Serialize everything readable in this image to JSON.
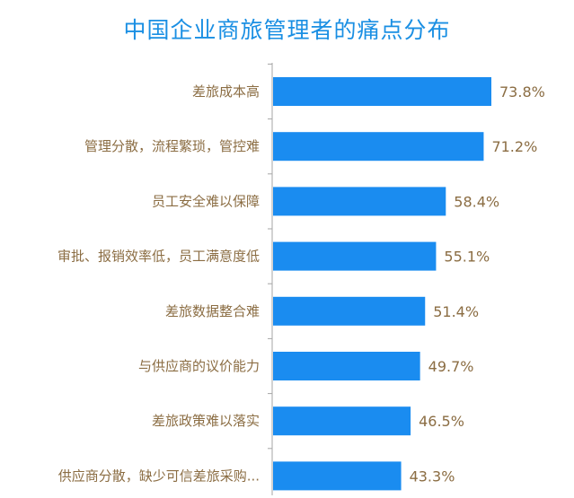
{
  "chart_data": {
    "type": "bar",
    "orientation": "horizontal",
    "title": "中国企业商旅管理者的痛点分布",
    "categories": [
      "差旅成本高",
      "管理分散，流程繁琐，管控难",
      "员工安全难以保障",
      "审批、报销效率低，员工满意度低",
      "差旅数据整合难",
      "与供应商的议价能力",
      "差旅政策难以落实",
      "供应商分散，缺少可信差旅采购..."
    ],
    "values": [
      73.8,
      71.2,
      58.4,
      55.1,
      51.4,
      49.7,
      46.5,
      43.3
    ],
    "value_labels": [
      "73.8%",
      "71.2%",
      "58.4%",
      "55.1%",
      "51.4%",
      "49.7%",
      "46.5%",
      "43.3%"
    ],
    "xlabel": "",
    "ylabel": "",
    "grid": false,
    "legend": "none"
  },
  "colors": {
    "bar": "#1a8cf0",
    "title": "#1a8fe3",
    "label": "#8b6d43",
    "axis": "#a6a6a6"
  }
}
